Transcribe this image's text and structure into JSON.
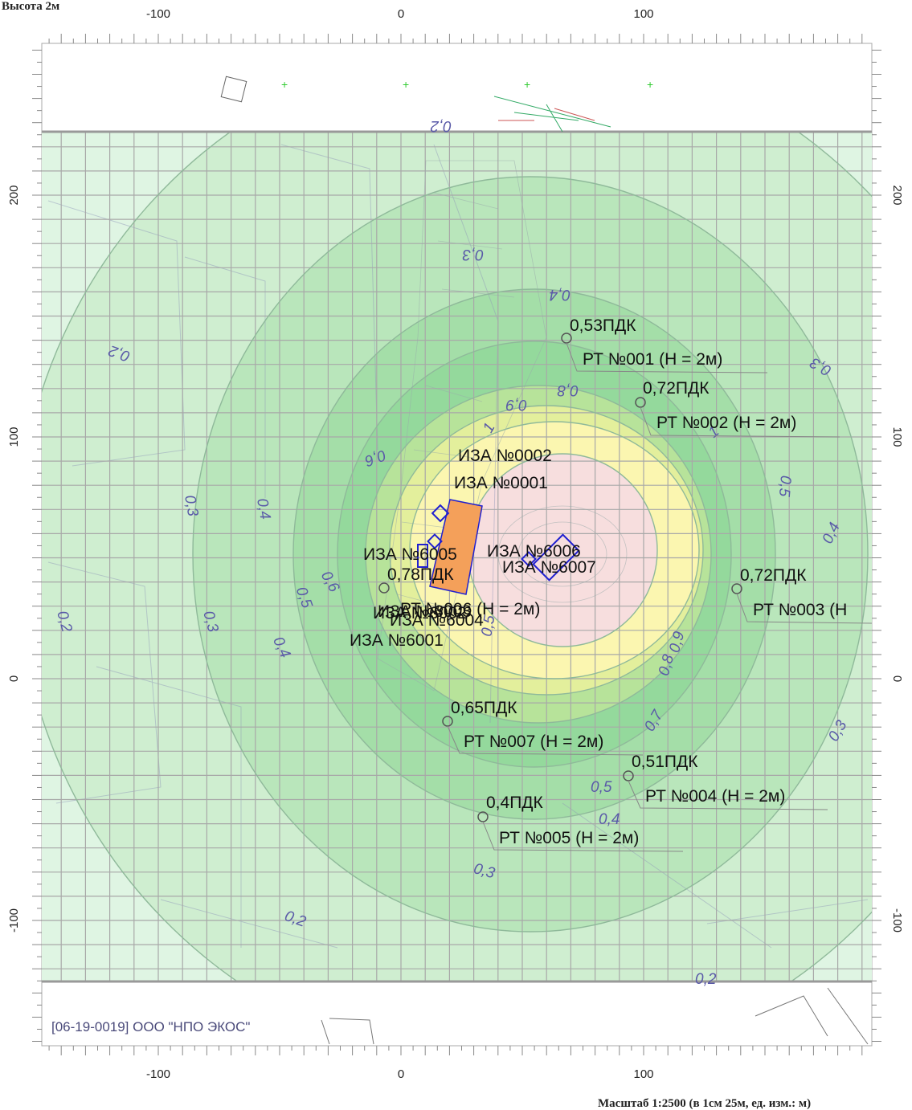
{
  "header": {
    "height_label": "Высота 2м"
  },
  "footer": {
    "scale_label": "Масштаб 1:2500 (в 1см 25м, ед. изм.: м)",
    "company": "[06-19-0019] ООО \"НПО ЭКОС\""
  },
  "axes": {
    "x_ticks": [
      {
        "value": -100,
        "label": "-100"
      },
      {
        "value": 0,
        "label": "0"
      },
      {
        "value": 100,
        "label": "100"
      }
    ],
    "y_ticks": [
      {
        "value": 200,
        "label": "200"
      },
      {
        "value": 100,
        "label": "100"
      },
      {
        "value": 0,
        "label": "0"
      },
      {
        "value": -100,
        "label": "-100"
      }
    ]
  },
  "isolines": [
    "1",
    "0,9",
    "0,8",
    "0,7",
    "0,6",
    "0,5",
    "0,4",
    "0,3",
    "0,2"
  ],
  "sources": [
    {
      "id": "iza-0002",
      "label": "ИЗА №0002"
    },
    {
      "id": "iza-0001",
      "label": "ИЗА №0001"
    },
    {
      "id": "iza-6005",
      "label": "ИЗА №6005"
    },
    {
      "id": "iza-6006",
      "label": "ИЗА №6006"
    },
    {
      "id": "iza-6007",
      "label": "ИЗА №6007"
    },
    {
      "id": "iza-6002",
      "label": "ИЗА №6002"
    },
    {
      "id": "iza-6003",
      "label": "ИЗА №6003"
    },
    {
      "id": "iza-6004",
      "label": "ИЗА №6004"
    },
    {
      "id": "iza-6001",
      "label": "ИЗА №6001"
    }
  ],
  "points": [
    {
      "id": "rt-001",
      "value": "0,53ПДК",
      "name": "РТ №001 (Н = 2м)"
    },
    {
      "id": "rt-002",
      "value": "0,72ПДК",
      "name": "РТ №002 (Н = 2м)"
    },
    {
      "id": "rt-003",
      "value": "0,72ПДК",
      "name": "РТ №003 (Н"
    },
    {
      "id": "rt-006",
      "value": "0,78ПДК",
      "name": "РТ №006 (Н = 2м)"
    },
    {
      "id": "rt-007",
      "value": "0,65ПДК",
      "name": "РТ №007 (Н = 2м)"
    },
    {
      "id": "rt-004",
      "value": "0,51ПДК",
      "name": "РТ №004 (Н = 2м)"
    },
    {
      "id": "rt-005",
      "value": "0,4ПДК",
      "name": "РТ №005 (Н = 2м)"
    }
  ],
  "colors": {
    "zone_020": "#dff5e3",
    "zone_030": "#cfeed0",
    "zone_040": "#b9e6bb",
    "zone_050": "#a4dea8",
    "zone_060": "#94d99c",
    "zone_070": "#b7e39a",
    "zone_080": "#e3ef9c",
    "zone_090": "#fbf6b0",
    "zone_100": "#f7dede",
    "source_fill": "#f4a05a",
    "source_outline": "#2020d0",
    "grid": "#a8a8a8"
  }
}
